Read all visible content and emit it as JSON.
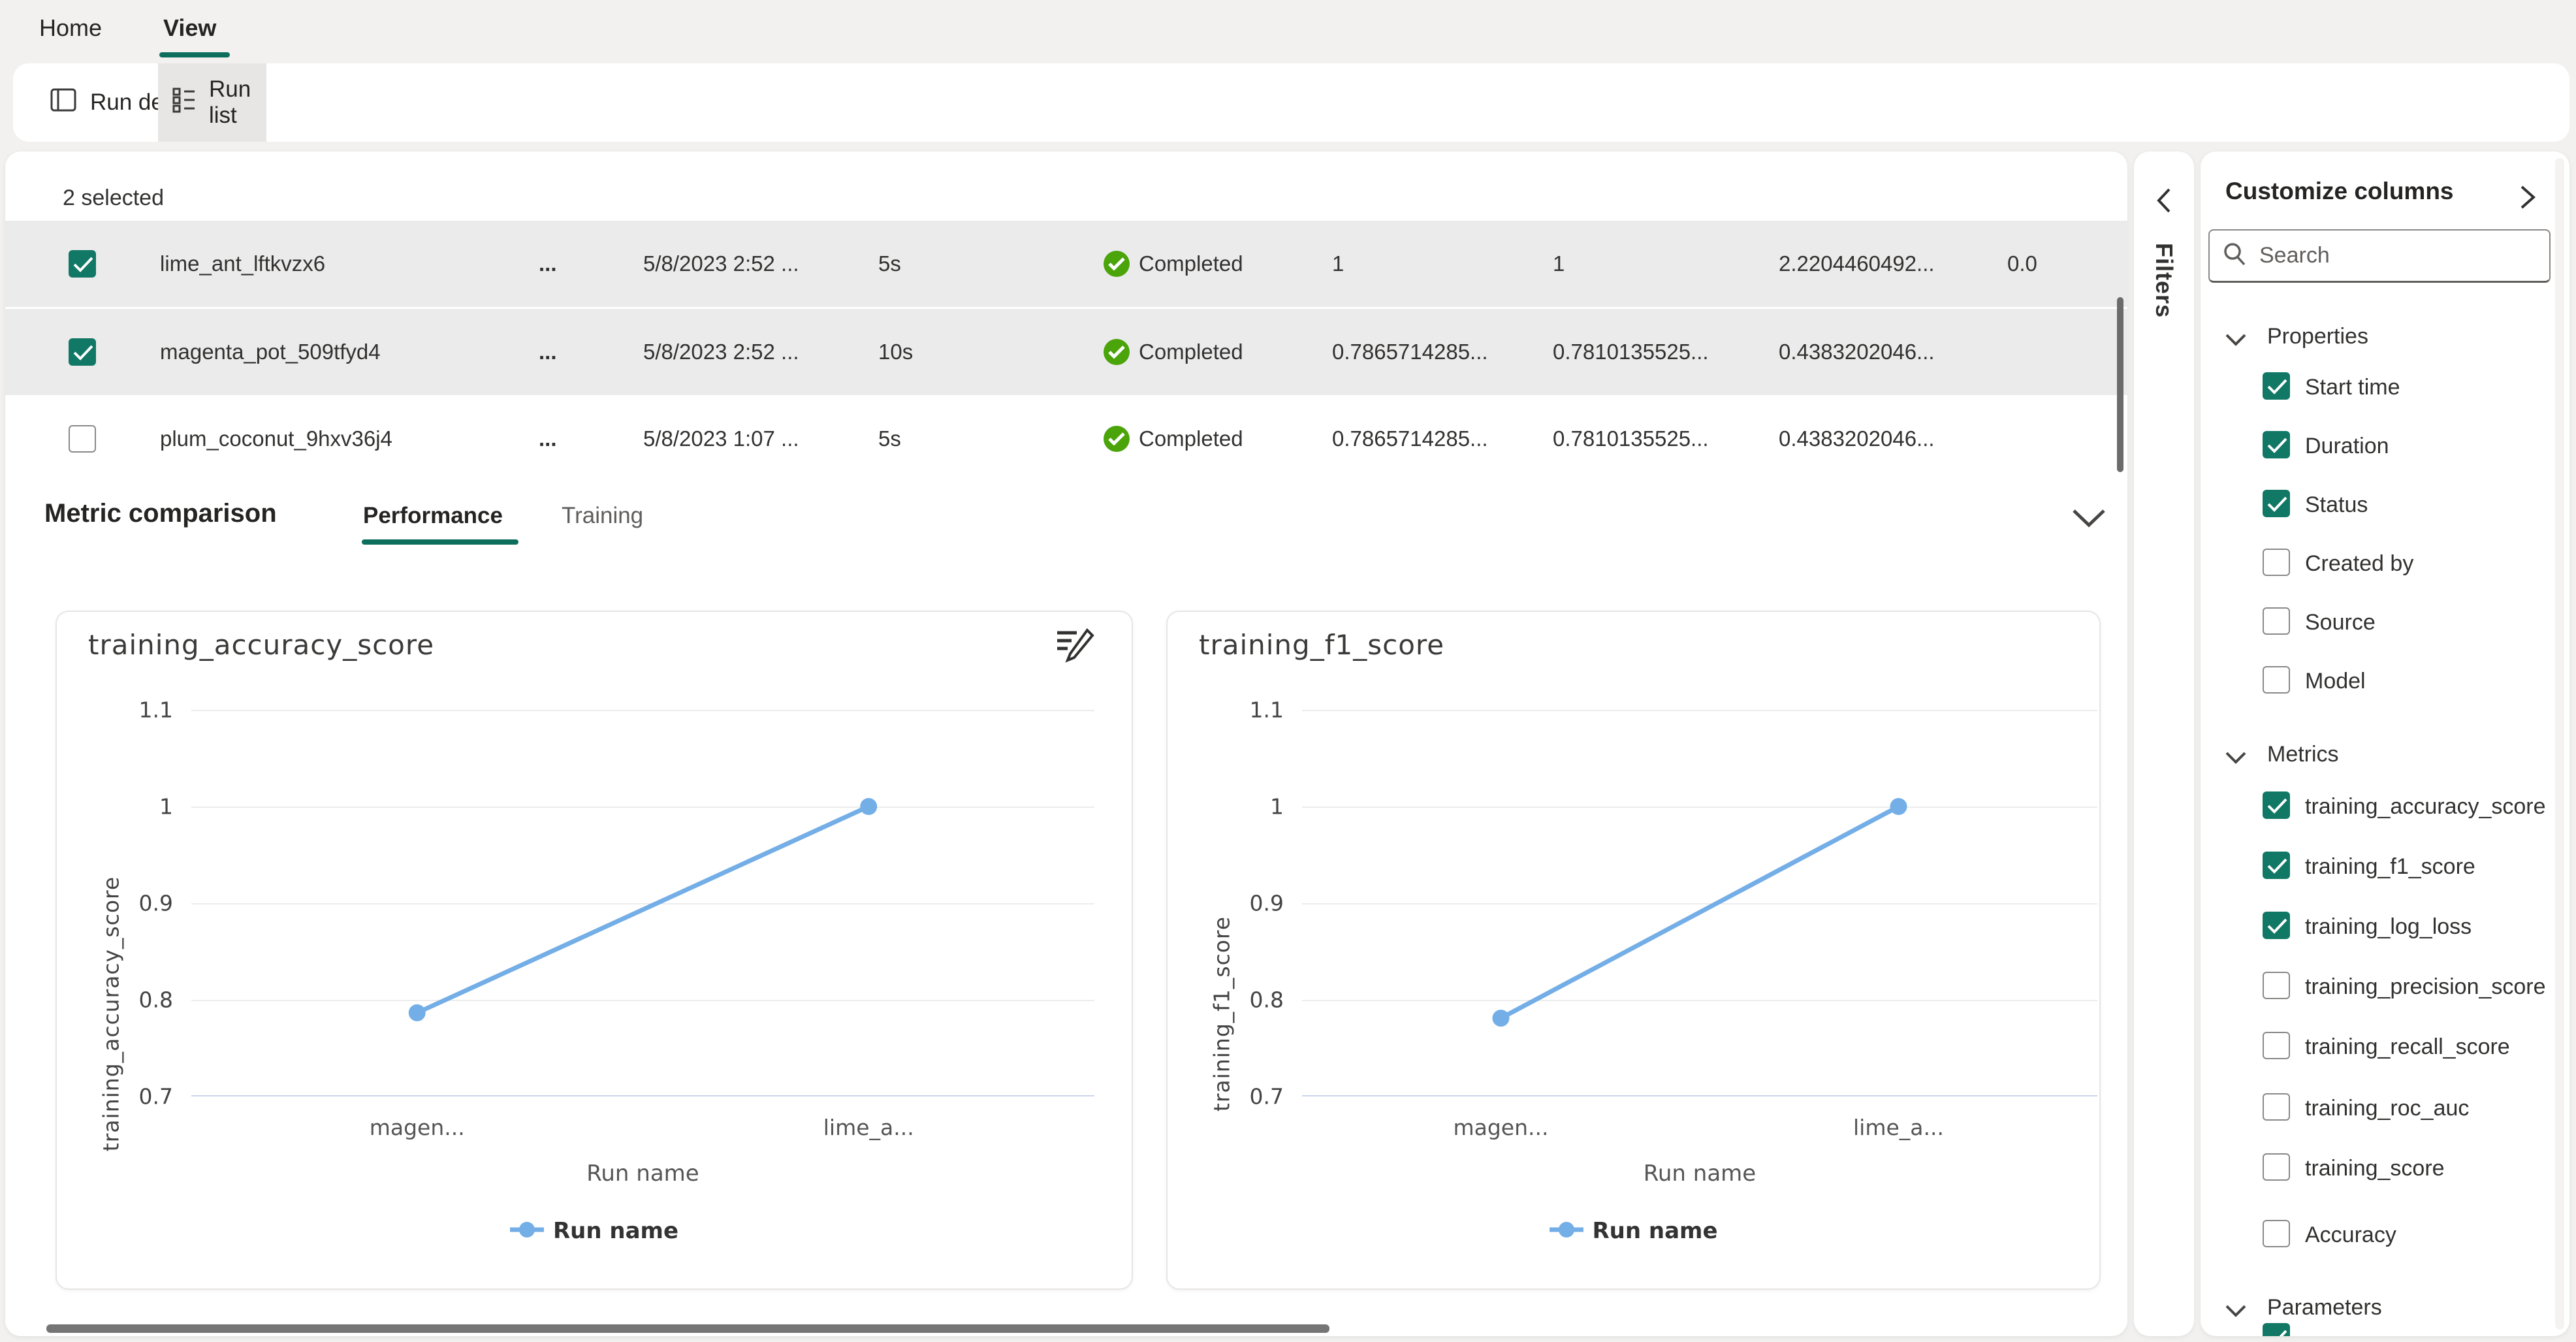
{
  "tabs": {
    "home": "Home",
    "view": "View"
  },
  "toolbar": {
    "run_details": "Run details",
    "run_list": "Run list"
  },
  "table": {
    "selection_summary": "2 selected",
    "rows": [
      {
        "name": "lime_ant_lftkvzx6",
        "menu": "...",
        "start_time": "5/8/2023 2:52 ...",
        "duration": "5s",
        "status": "Completed",
        "m1": "1",
        "m2": "1",
        "m3": "2.2204460492...",
        "m4": "0.0"
      },
      {
        "name": "magenta_pot_509tfyd4",
        "menu": "...",
        "start_time": "5/8/2023 2:52 ...",
        "duration": "10s",
        "status": "Completed",
        "m1": "0.7865714285...",
        "m2": "0.7810135525...",
        "m3": "0.4383202046...",
        "m4": ""
      },
      {
        "name": "plum_coconut_9hxv36j4",
        "menu": "...",
        "start_time": "5/8/2023 1:07 ...",
        "duration": "5s",
        "status": "Completed",
        "m1": "0.7865714285...",
        "m2": "0.7810135525...",
        "m3": "0.4383202046...",
        "m4": ""
      }
    ]
  },
  "metric_section": {
    "title": "Metric comparison",
    "tab_performance": "Performance",
    "tab_training": "Training"
  },
  "chart_data": [
    {
      "type": "line",
      "title": "training_accuracy_score",
      "xlabel": "Run name",
      "ylabel": "training_accuracy_score",
      "categories": [
        "magen...",
        "lime_a..."
      ],
      "values": [
        0.7865714285,
        1
      ],
      "ylim": [
        0.7,
        1.1
      ],
      "yticks": [
        "1.1",
        "1",
        "0.9",
        "0.8",
        "0.7"
      ],
      "legend": "Run name",
      "line_color": "#74aee6",
      "grid": true,
      "legend_position": "bottom-center"
    },
    {
      "type": "line",
      "title": "training_f1_score",
      "xlabel": "Run name",
      "ylabel": "training_f1_score",
      "categories": [
        "magen...",
        "lime_a..."
      ],
      "values": [
        0.7810135525,
        1
      ],
      "ylim": [
        0.7,
        1.1
      ],
      "yticks": [
        "1.1",
        "1",
        "0.9",
        "0.8",
        "0.7"
      ],
      "legend": "Run name",
      "line_color": "#74aee6",
      "grid": true,
      "legend_position": "bottom-center"
    }
  ],
  "filters_panel": {
    "label": "Filters"
  },
  "customize_panel": {
    "title": "Customize columns",
    "search_placeholder": "Search",
    "sections": {
      "properties": {
        "label": "Properties",
        "items": [
          {
            "label": "Start time",
            "checked": true
          },
          {
            "label": "Duration",
            "checked": true
          },
          {
            "label": "Status",
            "checked": true
          },
          {
            "label": "Created by",
            "checked": false
          },
          {
            "label": "Source",
            "checked": false
          },
          {
            "label": "Model",
            "checked": false
          }
        ]
      },
      "metrics": {
        "label": "Metrics",
        "items": [
          {
            "label": "training_accuracy_score",
            "checked": true
          },
          {
            "label": "training_f1_score",
            "checked": true
          },
          {
            "label": "training_log_loss",
            "checked": true
          },
          {
            "label": "training_precision_score",
            "checked": false
          },
          {
            "label": "training_recall_score",
            "checked": false
          },
          {
            "label": "training_roc_auc",
            "checked": false
          },
          {
            "label": "training_score",
            "checked": false
          },
          {
            "label": "Accuracy",
            "checked": false
          }
        ]
      },
      "parameters": {
        "label": "Parameters"
      }
    }
  },
  "colors": {
    "accent_teal": "#117865",
    "tab_underline": "#0e6e5c",
    "completed_green": "#4aa40a",
    "chart_line_blue": "#74aee6",
    "selected_row_bg": "#ebebeb",
    "page_bg": "#f2f1f0"
  }
}
